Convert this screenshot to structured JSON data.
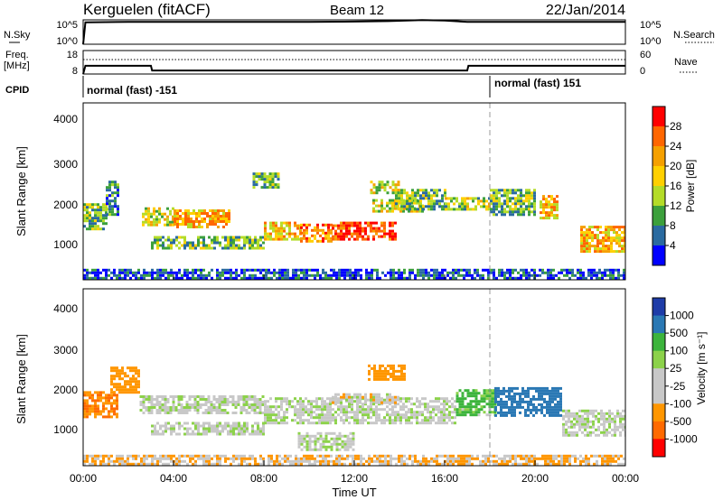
{
  "header": {
    "station": "Kerguelen (fitACF)",
    "beam": "Beam 12",
    "date": "22/Jan/2014"
  },
  "noise_panel": {
    "left_label": "N.Sky",
    "right_label": "N.Search",
    "y_ticks_left": [
      "10^5",
      "10^0"
    ],
    "y_ticks_right": [
      "10^5",
      "10^0"
    ]
  },
  "freq_panel": {
    "left_label_1": "Freq.",
    "left_label_2": "[MHz]",
    "right_label": "Nave",
    "y_ticks_left": [
      "18",
      "8"
    ],
    "y_ticks_right": [
      "60",
      "0"
    ]
  },
  "cpid_panel": {
    "label": "CPID",
    "segments": [
      {
        "text": "normal (fast) -151",
        "start_hour": 0
      },
      {
        "text": "normal (fast) 151",
        "start_hour": 18
      }
    ]
  },
  "power_panel": {
    "ylabel": "Slant Range [km]",
    "y_ticks": [
      "4000",
      "3000",
      "2000",
      "1000"
    ],
    "colorbar_label": "Power [dB]",
    "colorbar_ticks": [
      "28",
      "24",
      "20",
      "16",
      "12",
      "8",
      "4"
    ]
  },
  "velocity_panel": {
    "ylabel": "Slant Range [km]",
    "y_ticks": [
      "4000",
      "3000",
      "2000",
      "1000"
    ],
    "colorbar_label": "Velocity [m s⁻¹]",
    "colorbar_ticks": [
      "1000",
      "500",
      "100",
      "25",
      "-25",
      "-100",
      "-500",
      "-1000"
    ]
  },
  "x_axis": {
    "ticks": [
      "00:00",
      "04:00",
      "08:00",
      "12:00",
      "16:00",
      "20:00",
      "00:00"
    ],
    "label": "Time UT"
  },
  "colors": {
    "power_scale": [
      "#ff0000",
      "#ff6600",
      "#f5a000",
      "#ffd000",
      "#b4dc28",
      "#3ca03c",
      "#2a6aa0",
      "#0000ff"
    ],
    "velocity_scale": [
      "#1e3ca8",
      "#2a78b4",
      "#3cb43c",
      "#8cd24a",
      "#c8c8c8",
      "#c8c8c8",
      "#ff9600",
      "#ff6a00",
      "#ff0000"
    ]
  },
  "chart_data": [
    {
      "type": "line",
      "title": "Kerguelen (fitACF) Beam 12 22/Jan/2014",
      "series": [
        {
          "name": "N.Sky",
          "x": [
            0,
            0.1,
            2,
            4,
            6,
            8,
            10,
            12,
            13.5,
            15,
            16,
            17,
            18,
            20,
            22,
            24
          ],
          "y_log10": [
            0,
            4.5,
            4.6,
            4.6,
            4.6,
            4.6,
            4.6,
            4.65,
            4.75,
            4.95,
            4.85,
            4.6,
            4.6,
            4.6,
            4.6,
            4.6
          ]
        }
      ],
      "ylabel": "N.Sky",
      "ylim_log10": [
        0,
        5
      ],
      "xlim": [
        0,
        24
      ]
    },
    {
      "type": "line",
      "series": [
        {
          "name": "Freq.",
          "x": [
            0,
            0.1,
            3,
            3.05,
            17,
            17.05,
            24
          ],
          "y": [
            8,
            11.5,
            11.5,
            9.5,
            9.5,
            11.5,
            11.5
          ]
        }
      ],
      "ylabel": "Freq. [MHz]",
      "ylim": [
        8,
        18
      ],
      "xlim": [
        0,
        24
      ]
    },
    {
      "type": "heatmap",
      "variable": "Power [dB]",
      "xlabel": "Time UT",
      "ylabel": "Slant Range [km]",
      "xlim": [
        0,
        24
      ],
      "ylim": [
        180,
        4500
      ],
      "color_range": [
        0,
        30
      ],
      "bands": [
        {
          "t0": 0.0,
          "t1": 1.0,
          "r0": 1450,
          "r1": 2050,
          "v": 12
        },
        {
          "t0": 1.0,
          "t1": 1.6,
          "r0": 1800,
          "r1": 2600,
          "v": 8
        },
        {
          "t0": 2.6,
          "t1": 4.0,
          "r0": 1500,
          "r1": 1950,
          "v": 16
        },
        {
          "t0": 4.0,
          "t1": 6.5,
          "r0": 1500,
          "r1": 1900,
          "v": 20
        },
        {
          "t0": 3.0,
          "t1": 8.0,
          "r0": 950,
          "r1": 1250,
          "v": 12
        },
        {
          "t0": 8.0,
          "t1": 9.6,
          "r0": 1200,
          "r1": 1600,
          "v": 18
        },
        {
          "t0": 9.6,
          "t1": 11.0,
          "r0": 1150,
          "r1": 1550,
          "v": 22
        },
        {
          "t0": 11.0,
          "t1": 13.8,
          "r0": 1150,
          "r1": 1600,
          "v": 26
        },
        {
          "t0": 12.8,
          "t1": 15.0,
          "r0": 1850,
          "r1": 2150,
          "v": 16
        },
        {
          "t0": 13.8,
          "t1": 16.0,
          "r0": 1900,
          "r1": 2400,
          "v": 12
        },
        {
          "t0": 16.0,
          "t1": 18.0,
          "r0": 1900,
          "r1": 2200,
          "v": 14
        },
        {
          "t0": 18.0,
          "t1": 20.0,
          "r0": 1800,
          "r1": 2400,
          "v": 12
        },
        {
          "t0": 20.2,
          "t1": 21.0,
          "r0": 1700,
          "r1": 2250,
          "v": 18
        },
        {
          "t0": 22.0,
          "t1": 24.0,
          "r0": 900,
          "r1": 1500,
          "v": 20
        },
        {
          "t0": 7.5,
          "t1": 8.6,
          "r0": 2450,
          "r1": 2800,
          "v": 12
        },
        {
          "t0": 12.7,
          "t1": 14.0,
          "r0": 2300,
          "r1": 2600,
          "v": 16
        },
        {
          "t0": 0.0,
          "t1": 24.0,
          "r0": 200,
          "r1": 450,
          "v": 6
        }
      ]
    },
    {
      "type": "heatmap",
      "variable": "Velocity [m s-1]",
      "xlabel": "Time UT",
      "ylabel": "Slant Range [km]",
      "xlim": [
        0,
        24
      ],
      "ylim": [
        180,
        4500
      ],
      "color_range": [
        -1000,
        1000
      ],
      "bands": [
        {
          "t0": 0.0,
          "t1": 1.5,
          "r0": 1400,
          "r1": 2000,
          "v": -300
        },
        {
          "t0": 1.2,
          "t1": 2.5,
          "r0": 2000,
          "r1": 2600,
          "v": -200
        },
        {
          "t0": 2.5,
          "t1": 8.0,
          "r0": 1450,
          "r1": 1900,
          "v": 0
        },
        {
          "t0": 3.0,
          "t1": 8.0,
          "r0": 950,
          "r1": 1250,
          "v": 0
        },
        {
          "t0": 8.0,
          "t1": 16.5,
          "r0": 1250,
          "r1": 1850,
          "v": 0
        },
        {
          "t0": 11.0,
          "t1": 14.0,
          "r0": 1750,
          "r1": 1950,
          "v": -20
        },
        {
          "t0": 12.6,
          "t1": 14.2,
          "r0": 2300,
          "r1": 2650,
          "v": -150
        },
        {
          "t0": 16.5,
          "t1": 18.2,
          "r0": 1450,
          "r1": 2050,
          "v": 80
        },
        {
          "t0": 18.2,
          "t1": 21.2,
          "r0": 1400,
          "r1": 2100,
          "v": 400
        },
        {
          "t0": 21.2,
          "t1": 24.0,
          "r0": 900,
          "r1": 1550,
          "v": 0
        },
        {
          "t0": 9.5,
          "t1": 12.0,
          "r0": 600,
          "r1": 1000,
          "v": 0
        },
        {
          "t0": 0.0,
          "t1": 24.0,
          "r0": 200,
          "r1": 450,
          "v": -60
        }
      ]
    }
  ]
}
